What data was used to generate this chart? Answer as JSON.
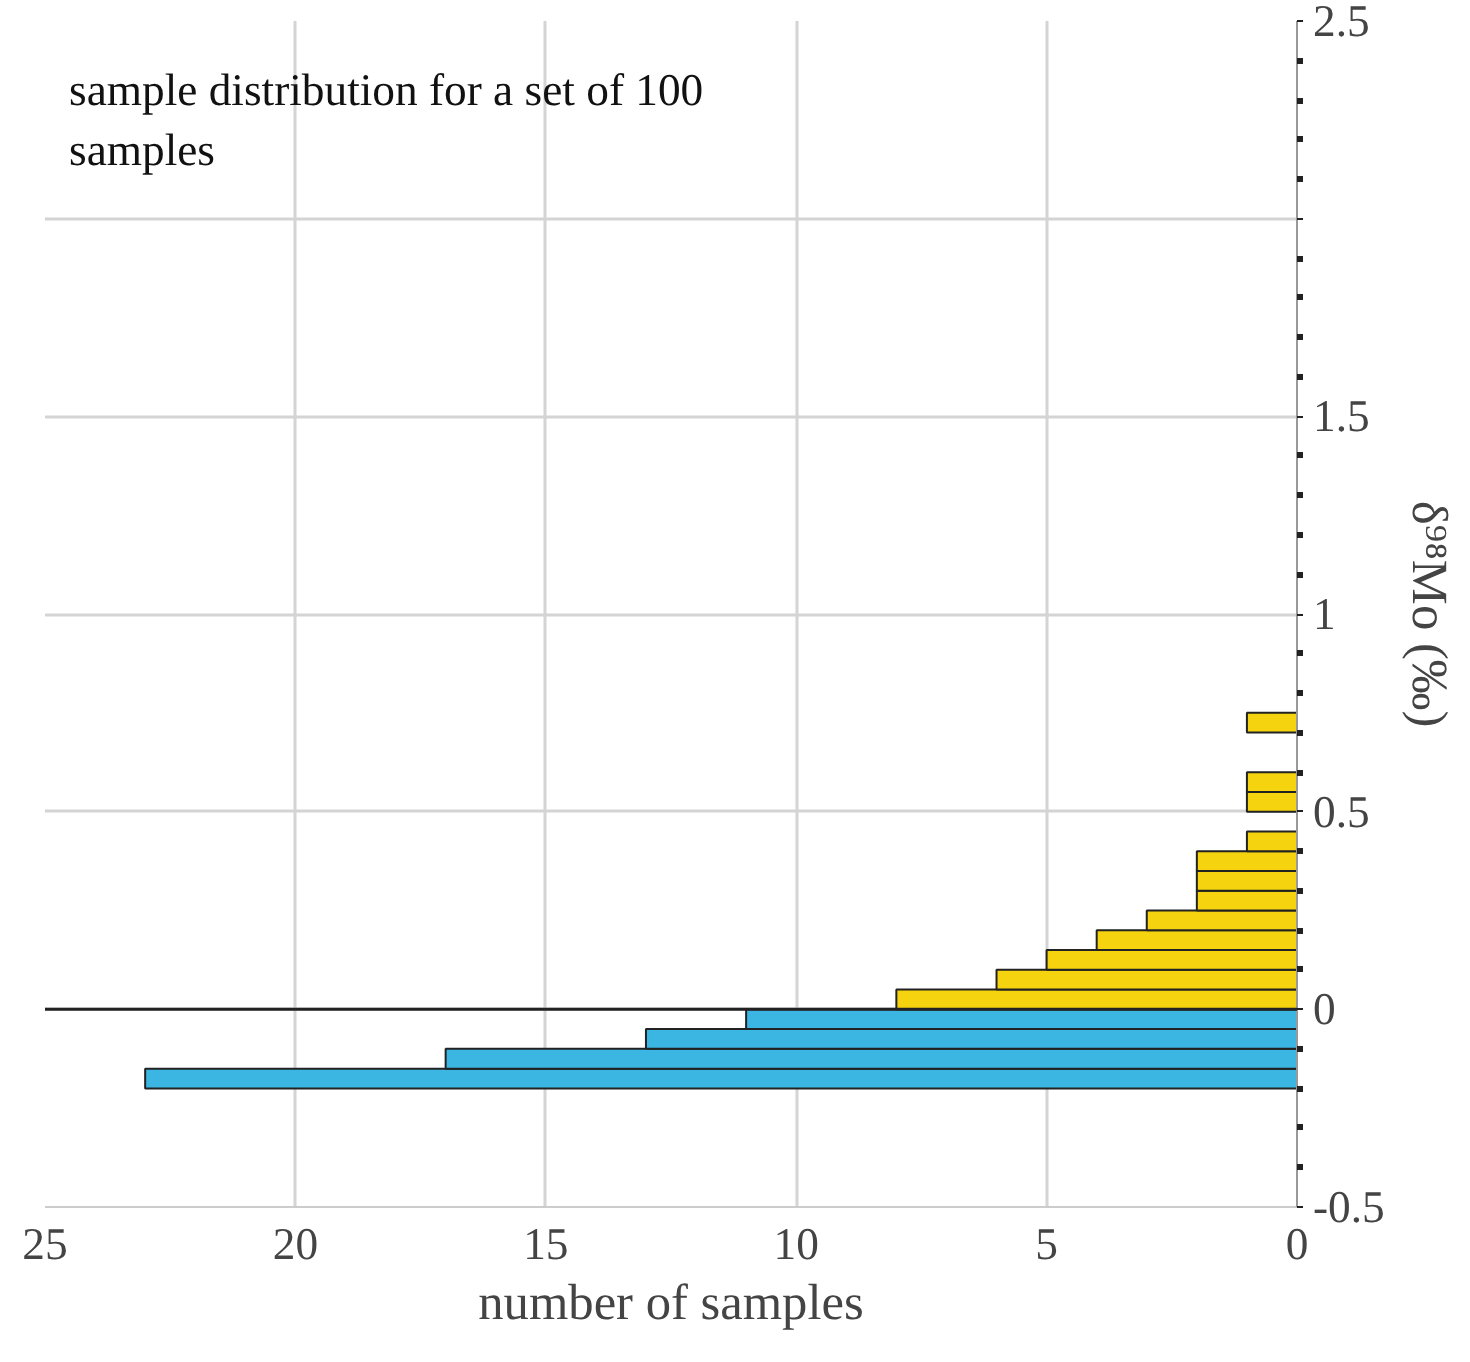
{
  "chart_data": {
    "type": "histogram",
    "orientation": "horizontal",
    "xlabel": "number of samples",
    "ylabel": "δ⁹⁸Mo (‰)",
    "annotations": [
      "sample distribution for a set of 100 samples"
    ],
    "bins": [
      -0.2,
      -0.15,
      -0.1,
      -0.05,
      0,
      0.05,
      0.1,
      0.15,
      0.2,
      0.25,
      0.3,
      0.35,
      0.4,
      0.45,
      0.5,
      0.55,
      0.6,
      0.65,
      0.7,
      0.75
    ],
    "values": [
      23,
      17,
      13,
      11,
      8,
      6,
      5,
      4,
      3,
      2,
      2,
      2,
      1,
      0,
      1,
      1,
      0,
      0,
      1
    ],
    "colors": [
      "#3bb6e3",
      "#3bb6e3",
      "#3bb6e3",
      "#3bb6e3",
      "#f5d40f",
      "#f5d40f",
      "#f5d40f",
      "#f5d40f",
      "#f5d40f",
      "#f5d40f",
      "#f5d40f",
      "#f5d40f",
      "#f5d40f",
      "#f5d40f",
      "#f5d40f",
      "#f5d40f",
      "#f5d40f",
      "#f5d40f",
      "#f5d40f"
    ],
    "xlim": [
      25,
      0
    ],
    "xticks": [
      25,
      20,
      15,
      10,
      5,
      0
    ],
    "ylim": [
      -0.5,
      2.5
    ],
    "yticks": [
      -0.5,
      0,
      0.5,
      1,
      1.5,
      {
        "value": 2,
        "label": null
      },
      2.5
    ],
    "ref_lines": [
      {
        "axis": "y",
        "value": 0,
        "color": "#222222"
      }
    ],
    "grid": true
  }
}
